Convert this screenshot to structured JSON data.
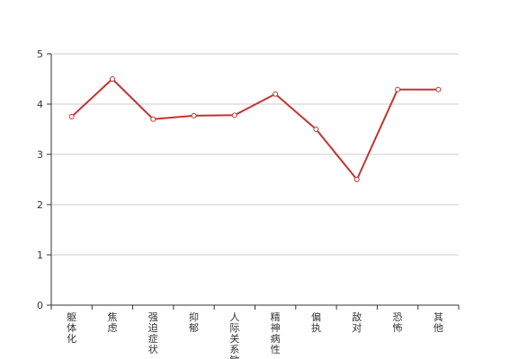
{
  "chart_data": {
    "type": "line",
    "title": "",
    "xlabel": "",
    "ylabel": "",
    "categories": [
      "躯体化",
      "焦虑",
      "强迫症状",
      "抑郁",
      "人际关系敏感",
      "精神病性",
      "偏执",
      "敌对",
      "恐怖",
      "其他"
    ],
    "series": [
      {
        "values": [
          3.75,
          4.5,
          3.7,
          3.77,
          3.78,
          4.2,
          3.5,
          2.5,
          4.29,
          4.29
        ]
      }
    ],
    "ylim": [
      0,
      5
    ],
    "yticks": [
      0,
      1,
      2,
      3,
      4,
      5
    ],
    "grid": "horizontal",
    "line_color": "#c23531",
    "grid_color": "#cccccc",
    "axis_color": "#333333"
  }
}
